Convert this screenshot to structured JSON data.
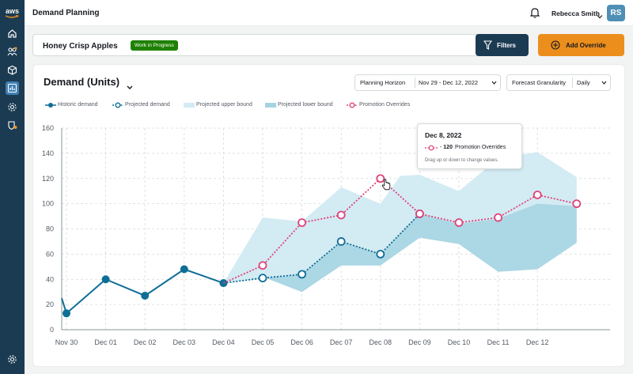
{
  "app": {
    "logo_text": "aws",
    "page_title": "Demand Planning"
  },
  "user": {
    "name": "Rebecca Smith",
    "initials": "RS"
  },
  "rail": {
    "icons": [
      "home-icon",
      "users-icon",
      "box-icon",
      "chart-icon",
      "settings-gear-icon",
      "alert-shield-icon",
      "gear-icon"
    ]
  },
  "product": {
    "name": "Honey Crisp Apples",
    "status_badge": "Work in Progress"
  },
  "actions": {
    "filters_label": "Filters",
    "add_override_label": "Add Override"
  },
  "card": {
    "title": "Demand (Units)",
    "planning_horizon": {
      "label": "Planning Horizon",
      "value": "Nov 29 - Dec 12, 2022"
    },
    "forecast_granularity": {
      "label": "Forecast Granularity",
      "value": "Daily"
    }
  },
  "legend": {
    "historic": "Historic demand",
    "projected": "Projected demand",
    "upper": "Projected upper bound",
    "lower": "Projected lower bound",
    "promo": "Promotion Overrides"
  },
  "tooltip": {
    "date": "Dec 8, 2022",
    "series": "Promotion Overrides",
    "value": "120",
    "hint": "Drag up or down to change values."
  },
  "colors": {
    "historic": "#0f6e96",
    "projected": "#0f6e96",
    "upper_band": "#d3ebf3",
    "lower_band": "#a5d3e2",
    "promo": "#e0427a",
    "accent_orange": "#ec8e1c",
    "navy": "#1b3b52"
  },
  "chart_data": {
    "type": "line",
    "categories": [
      "Nov 30",
      "Dec 01",
      "Dec 02",
      "Dec 03",
      "Dec 04",
      "Dec 05",
      "Dec 06",
      "Dec 07",
      "Dec 08",
      "Dec 09",
      "Dec 10",
      "Dec 11",
      "Dec 12"
    ],
    "ylim": [
      0,
      160
    ],
    "yticks": [
      0,
      20,
      40,
      60,
      80,
      100,
      120,
      140,
      160
    ],
    "grid": true,
    "historic_demand": {
      "x": [
        -1,
        0,
        1,
        2,
        3,
        4
      ],
      "y": [
        25,
        13,
        40,
        27,
        48,
        37
      ]
    },
    "projected_demand": {
      "x": [
        4,
        5,
        6,
        7,
        8,
        9
      ],
      "y": [
        37,
        41,
        44,
        70,
        60,
        92
      ]
    },
    "projected_upper_bound": {
      "x": [
        4,
        5,
        6,
        7,
        8,
        8.5,
        9,
        10,
        11,
        12,
        13
      ],
      "y": [
        37,
        89,
        86,
        113,
        100,
        122,
        123,
        110,
        136,
        141,
        121
      ]
    },
    "projected_lower_bound": {
      "x": [
        4,
        5,
        6,
        7,
        8,
        9,
        10,
        11,
        12,
        13
      ],
      "y": [
        37,
        42,
        30,
        51,
        51,
        73,
        68,
        46,
        48,
        69
      ]
    },
    "promotion_overrides": {
      "x": [
        4,
        5,
        6,
        7,
        8,
        9,
        10,
        11,
        12,
        13
      ],
      "y": [
        37,
        51,
        85,
        91,
        120,
        92,
        85,
        89,
        107,
        100
      ]
    }
  }
}
